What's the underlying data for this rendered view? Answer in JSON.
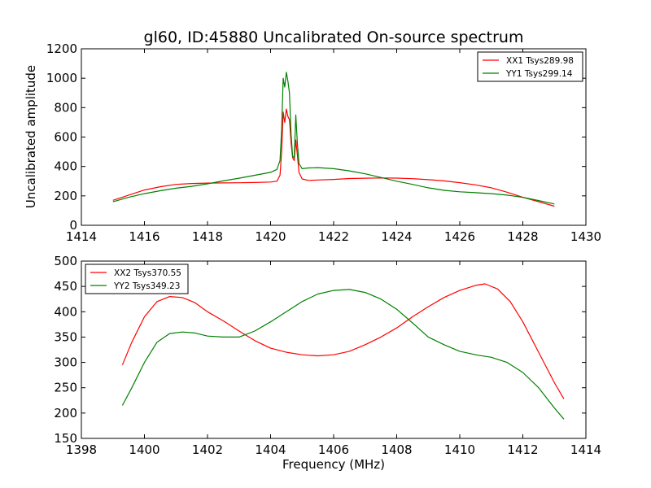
{
  "chart_data": [
    {
      "type": "line",
      "title": "gl60, ID:45880 Uncalibrated On-source spectrum",
      "xlabel": "",
      "ylabel": "Uncalibrated amplitude",
      "xlim": [
        1414,
        1430
      ],
      "ylim": [
        0,
        1200
      ],
      "xticks": [
        1414,
        1416,
        1418,
        1420,
        1422,
        1424,
        1426,
        1428,
        1430
      ],
      "yticks": [
        0,
        200,
        400,
        600,
        800,
        1000,
        1200
      ],
      "grid": false,
      "legend_position": "top-right",
      "series": [
        {
          "name": "XX1 Tsys289.98",
          "color": "#ff0000",
          "x": [
            1415.0,
            1415.5,
            1416.0,
            1416.5,
            1417.0,
            1417.5,
            1418.0,
            1418.5,
            1419.0,
            1419.5,
            1420.0,
            1420.2,
            1420.3,
            1420.35,
            1420.4,
            1420.45,
            1420.5,
            1420.55,
            1420.6,
            1420.65,
            1420.7,
            1420.75,
            1420.8,
            1420.85,
            1420.9,
            1421.0,
            1421.2,
            1421.5,
            1422.0,
            1422.5,
            1423.0,
            1423.5,
            1424.0,
            1424.5,
            1425.0,
            1425.5,
            1426.0,
            1426.5,
            1427.0,
            1427.5,
            1428.0,
            1428.5,
            1429.0
          ],
          "y": [
            170,
            205,
            240,
            262,
            278,
            284,
            287,
            288,
            289,
            291,
            294,
            300,
            340,
            500,
            770,
            700,
            790,
            740,
            720,
            560,
            460,
            440,
            580,
            480,
            360,
            315,
            305,
            308,
            312,
            318,
            320,
            322,
            321,
            317,
            310,
            302,
            290,
            275,
            255,
            225,
            190,
            160,
            130
          ]
        },
        {
          "name": "YY1 Tsys299.14",
          "color": "#008000",
          "x": [
            1415.0,
            1415.5,
            1416.0,
            1416.5,
            1417.0,
            1417.5,
            1418.0,
            1418.5,
            1419.0,
            1419.5,
            1420.0,
            1420.2,
            1420.3,
            1420.35,
            1420.4,
            1420.45,
            1420.5,
            1420.55,
            1420.6,
            1420.65,
            1420.7,
            1420.75,
            1420.8,
            1420.85,
            1420.9,
            1421.0,
            1421.2,
            1421.5,
            1422.0,
            1422.5,
            1423.0,
            1423.5,
            1424.0,
            1424.5,
            1425.0,
            1425.5,
            1426.0,
            1426.5,
            1427.0,
            1427.5,
            1428.0,
            1428.5,
            1429.0
          ],
          "y": [
            160,
            190,
            215,
            235,
            252,
            265,
            282,
            302,
            320,
            340,
            360,
            380,
            440,
            650,
            1000,
            940,
            1040,
            980,
            900,
            620,
            470,
            460,
            750,
            560,
            420,
            385,
            390,
            392,
            385,
            370,
            350,
            325,
            300,
            278,
            255,
            238,
            228,
            222,
            215,
            205,
            190,
            168,
            145
          ]
        }
      ]
    },
    {
      "type": "line",
      "title": "",
      "xlabel": "Frequency (MHz)",
      "ylabel": "",
      "xlim": [
        1398,
        1414
      ],
      "ylim": [
        150,
        500
      ],
      "xticks": [
        1398,
        1400,
        1402,
        1404,
        1406,
        1408,
        1410,
        1412,
        1414
      ],
      "yticks": [
        150,
        200,
        250,
        300,
        350,
        400,
        450,
        500
      ],
      "grid": false,
      "legend_position": "top-left",
      "series": [
        {
          "name": "XX2 Tsys370.55",
          "color": "#ff0000",
          "x": [
            1399.3,
            1399.6,
            1400.0,
            1400.4,
            1400.8,
            1401.2,
            1401.6,
            1402.0,
            1402.5,
            1403.0,
            1403.5,
            1404.0,
            1404.5,
            1405.0,
            1405.5,
            1406.0,
            1406.5,
            1407.0,
            1407.5,
            1408.0,
            1408.5,
            1409.0,
            1409.5,
            1410.0,
            1410.5,
            1410.8,
            1411.2,
            1411.6,
            1412.0,
            1412.5,
            1413.0,
            1413.3
          ],
          "y": [
            295,
            340,
            390,
            420,
            430,
            428,
            418,
            400,
            382,
            362,
            343,
            328,
            320,
            315,
            313,
            315,
            322,
            335,
            350,
            368,
            390,
            410,
            428,
            442,
            452,
            455,
            445,
            420,
            380,
            320,
            260,
            228
          ]
        },
        {
          "name": "YY2 Tsys349.23",
          "color": "#008000",
          "x": [
            1399.3,
            1399.6,
            1400.0,
            1400.4,
            1400.8,
            1401.2,
            1401.6,
            1402.0,
            1402.5,
            1403.0,
            1403.5,
            1404.0,
            1404.5,
            1405.0,
            1405.5,
            1406.0,
            1406.5,
            1407.0,
            1407.5,
            1408.0,
            1408.5,
            1409.0,
            1409.5,
            1410.0,
            1410.5,
            1411.0,
            1411.5,
            1412.0,
            1412.5,
            1413.0,
            1413.3
          ],
          "y": [
            215,
            250,
            300,
            340,
            357,
            360,
            358,
            352,
            350,
            350,
            362,
            380,
            400,
            420,
            435,
            442,
            444,
            438,
            425,
            405,
            378,
            350,
            335,
            322,
            315,
            310,
            300,
            280,
            250,
            210,
            188
          ]
        }
      ]
    }
  ]
}
